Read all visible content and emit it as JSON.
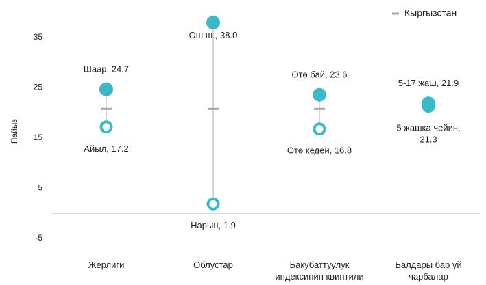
{
  "chart_data": {
    "type": "dot-range",
    "y_label": "Пайыз",
    "categories": [
      [
        "Жерлиги"
      ],
      [
        "Облустар"
      ],
      [
        "Бакубаттуулук",
        "индексинин  квинтили"
      ],
      [
        "Балдары бар үй",
        "чарбалар"
      ]
    ],
    "ylim": [
      -9,
      42
    ],
    "yticks": [
      -5,
      5,
      15,
      25,
      35
    ],
    "grid": false,
    "legend": "top-right",
    "series": [
      {
        "color": "#3cb9c6",
        "fill": "#3cb9c6",
        "values": [
          24.7,
          38.0,
          23.6,
          21.9
        ],
        "value_labels": [
          [
            "Шаар, 24.7"
          ],
          [
            "Ош ш., 38.0"
          ],
          [
            "Өтө бай,  23.6"
          ],
          [
            "5-17 жаш, 21.9"
          ]
        ]
      },
      {
        "color": "#3cb9c6",
        "fill": "#ffffff",
        "values": [
          17.2,
          1.9,
          16.8,
          21.3
        ],
        "value_labels": [
          [
            "Айыл, 17.2"
          ],
          [
            "Нарын, 1.9"
          ],
          [
            "Өтө кедей,  16.8"
          ],
          [
            "5 жашка чейин,",
            "21.3"
          ]
        ]
      },
      {
        "name": "Кыргызстан",
        "color": "#a6a6a6",
        "values": [
          20.8,
          20.8,
          20.8,
          20.8
        ]
      }
    ]
  }
}
